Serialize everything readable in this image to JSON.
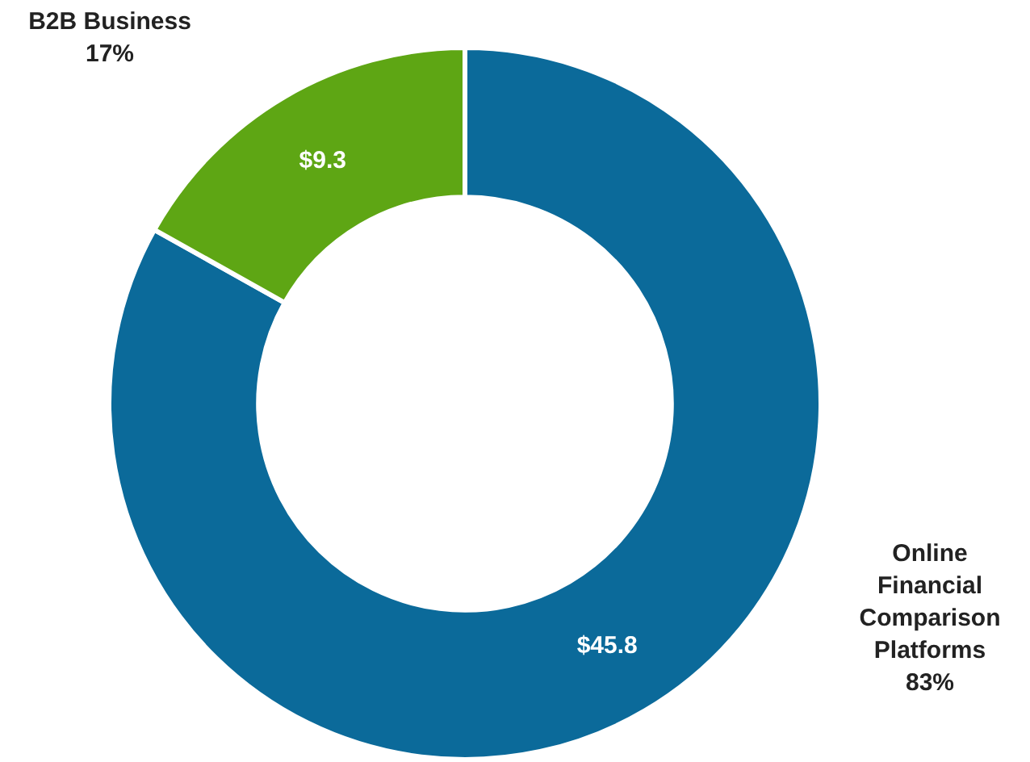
{
  "chart_data": {
    "type": "donut",
    "categories": [
      "Online Financial Comparison Platforms",
      "B2B Business"
    ],
    "values": [
      45.8,
      9.3
    ],
    "colors": [
      "#0b6a9a",
      "#5ea614"
    ],
    "value_labels": [
      "$45.8",
      "$9.3"
    ],
    "annotations": [
      "83%",
      "17%"
    ],
    "legend": false
  }
}
